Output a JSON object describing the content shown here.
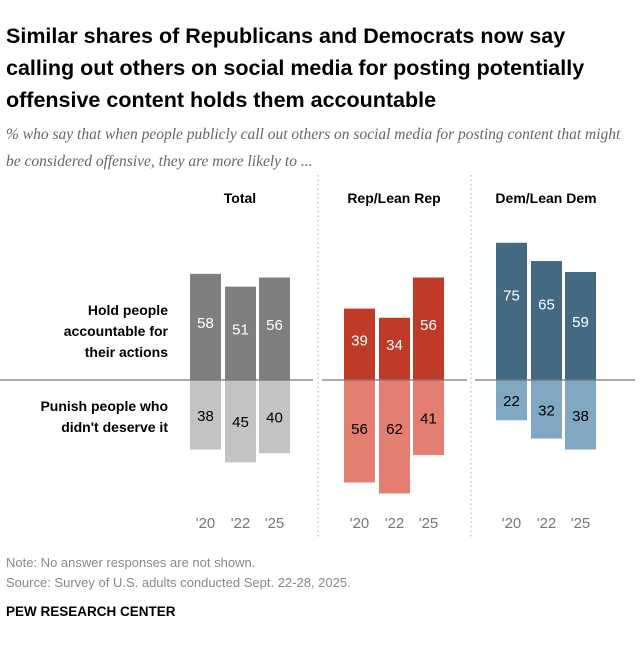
{
  "title": "Similar shares of Republicans and Democrats now say calling out others on social media for posting potentially offensive content holds them accountable",
  "subtitle": "% who say that when people publicly call out others on social media for posting content that might be considered offensive, they are more likely to ...",
  "chart_data": {
    "type": "bar",
    "subtype": "diverging-grouped",
    "row_labels": {
      "positive": [
        "Hold people",
        "accountable for",
        "their actions"
      ],
      "negative": [
        "Punish people who",
        "didn't deserve it"
      ]
    },
    "categories": [
      "'20",
      "'22",
      "'25"
    ],
    "panels": [
      {
        "name": "Total",
        "hold": [
          58,
          51,
          56
        ],
        "punish": [
          38,
          45,
          40
        ],
        "colors": {
          "hold": "#7f7f7f",
          "punish": "#c3c3c3"
        }
      },
      {
        "name": "Rep/Lean Rep",
        "hold": [
          39,
          34,
          56
        ],
        "punish": [
          56,
          62,
          41
        ],
        "colors": {
          "hold": "#bf3a27",
          "punish": "#e47e71"
        }
      },
      {
        "name": "Dem/Lean Dem",
        "hold": [
          75,
          65,
          59
        ],
        "punish": [
          22,
          32,
          38
        ],
        "colors": {
          "hold": "#436983",
          "punish": "#80a8c3"
        }
      }
    ],
    "grid": false
  },
  "note": "Note: No answer responses are not shown.",
  "source": "Source: Survey of U.S. adults conducted Sept. 22-28, 2025.",
  "brand": "PEW RESEARCH CENTER"
}
